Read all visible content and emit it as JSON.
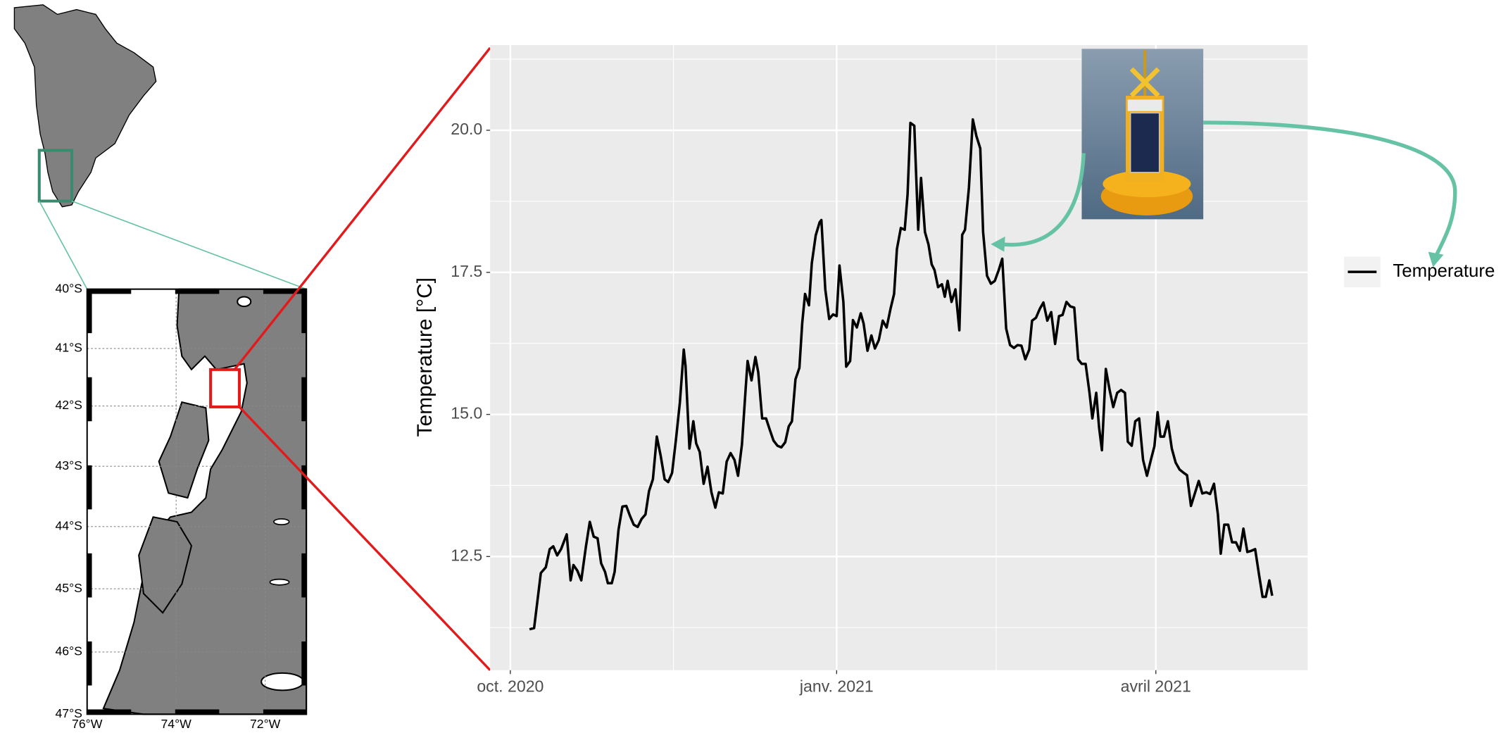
{
  "chart_data": {
    "type": "line",
    "y_label": "Temperature [°C]",
    "x": [
      5.4,
      6.7,
      8.6,
      10.0,
      11.1,
      12.1,
      13.2,
      14.3,
      15.9,
      17.0,
      17.8,
      18.9,
      20.0,
      21.3,
      22.4,
      23.5,
      24.6,
      25.6,
      26.7,
      27.5,
      28.6,
      29.4,
      30.5,
      31.6,
      32.7,
      33.7,
      34.8,
      35.9,
      37.0,
      38.1,
      39.1,
      40.2,
      41.3,
      42.4,
      43.5,
      44.5,
      45.6,
      46.7,
      47.8,
      48.9,
      49.4,
      50.5,
      51.6,
      52.4,
      53.4,
      54.5,
      55.6,
      56.7,
      57.8,
      58.8,
      59.9,
      61.0,
      62.1,
      63.2,
      64.2,
      65.3,
      66.4,
      66.9,
      68.0,
      69.1,
      69.9,
      71.0,
      72.1,
      73.1,
      74.2,
      75.3,
      76.4,
      77.5,
      78.5,
      79.4,
      80.4,
      81.5,
      82.3,
      83.1,
      84.2,
      85.0,
      86.1,
      87.2,
      87.7,
      88.8,
      89.9,
      91.0,
      92.0,
      92.8,
      93.9,
      94.7,
      95.8,
      96.6,
      97.7,
      98.8,
      99.6,
      100.7,
      101.8,
      102.8,
      103.9,
      105.0,
      106.1,
      107.2,
      108.2,
      109.0,
      110.1,
      111.2,
      112.0,
      112.8,
      113.9,
      115.0,
      115.8,
      116.9,
      117.9,
      118.8,
      119.6,
      120.6,
      121.7,
      122.5,
      123.3,
      124.4,
      125.5,
      126.6,
      127.4,
      128.2,
      129.3,
      130.4,
      131.4,
      132.5,
      133.3,
      134.4,
      135.5,
      136.6,
      137.7,
      138.7,
      139.8,
      140.9,
      142.0,
      143.0,
      144.1,
      145.2,
      146.3,
      147.1,
      148.2,
      149.3,
      150.3,
      151.4,
      152.5,
      153.6,
      154.7,
      155.7,
      156.8,
      157.9,
      159.0,
      160.1,
      161.1,
      162.2,
      163.3,
      164.1,
      165.2,
      166.0,
      166.8,
      167.9,
      169.0,
      170.0,
      171.1,
      172.2,
      173.3,
      174.1,
      175.2,
      176.2,
      177.3,
      178.4,
      179.5,
      180.6,
      181.6,
      182.5,
      183.3,
      184.3,
      185.4,
      186.5,
      187.6,
      188.7,
      189.7,
      190.8,
      191.9,
      193.0,
      194.1,
      195.1,
      196.2,
      197.3,
      198.4,
      199.5,
      200.3,
      201.3,
      202.4,
      203.5,
      204.6,
      205.7,
      206.7,
      207.8,
      208.9,
      210.0,
      211.1,
      212.1,
      213.0,
      214.0,
      214.8
    ],
    "series": [
      {
        "name": "Temperature",
        "color": "#000000",
        "values": [
          11.22,
          11.24,
          12.21,
          12.31,
          12.63,
          12.68,
          12.52,
          12.63,
          12.89,
          12.08,
          12.35,
          12.25,
          12.08,
          12.67,
          13.11,
          12.85,
          12.82,
          12.38,
          12.23,
          12.03,
          12.03,
          12.23,
          12.97,
          13.38,
          13.39,
          13.22,
          13.06,
          13.02,
          13.16,
          13.24,
          13.65,
          13.86,
          14.61,
          14.27,
          13.86,
          13.81,
          13.97,
          14.56,
          15.21,
          16.14,
          15.85,
          14.4,
          14.88,
          14.49,
          14.34,
          13.78,
          14.08,
          13.63,
          13.36,
          13.63,
          13.61,
          14.17,
          14.32,
          14.2,
          13.92,
          14.47,
          15.5,
          15.94,
          15.6,
          16.01,
          15.74,
          14.93,
          14.93,
          14.74,
          14.54,
          14.45,
          14.42,
          14.51,
          14.79,
          14.88,
          15.62,
          15.82,
          16.61,
          17.12,
          16.92,
          17.66,
          18.15,
          18.38,
          18.42,
          17.2,
          16.68,
          16.76,
          16.73,
          17.62,
          16.98,
          15.84,
          15.94,
          16.66,
          16.53,
          16.78,
          16.6,
          16.12,
          16.39,
          16.16,
          16.31,
          16.65,
          16.53,
          16.86,
          17.12,
          17.91,
          18.28,
          18.25,
          18.87,
          20.13,
          20.08,
          18.25,
          19.16,
          18.21,
          17.99,
          17.64,
          17.54,
          17.24,
          17.29,
          17.07,
          17.35,
          16.98,
          17.2,
          16.48,
          18.16,
          18.25,
          18.99,
          20.19,
          19.9,
          19.68,
          18.21,
          17.44,
          17.3,
          17.35,
          17.54,
          17.74,
          16.51,
          16.22,
          16.17,
          16.22,
          16.21,
          15.97,
          16.14,
          16.65,
          16.7,
          16.86,
          16.97,
          16.65,
          16.8,
          16.24,
          16.73,
          16.75,
          16.98,
          16.9,
          16.88,
          15.97,
          15.89,
          15.89,
          15.38,
          14.93,
          15.38,
          14.77,
          14.37,
          15.8,
          15.42,
          15.13,
          15.38,
          15.43,
          15.38,
          14.52,
          14.45,
          14.88,
          14.93,
          14.2,
          13.92,
          14.2,
          14.44,
          15.04,
          14.61,
          14.61,
          14.88,
          14.4,
          14.15,
          14.03,
          13.98,
          13.93,
          13.39,
          13.61,
          13.83,
          13.61,
          13.63,
          13.6,
          13.78,
          13.24,
          12.55,
          13.06,
          13.06,
          12.75,
          12.75,
          12.6,
          12.99,
          12.58,
          12.6,
          12.63,
          12.18,
          11.79,
          11.79,
          12.08,
          11.81
        ]
      }
    ],
    "xlim": [
      -5.7,
      224.8
    ],
    "xticks": [
      {
        "value": 0,
        "label": "oct. 2020"
      },
      {
        "value": 92,
        "label": "janv. 2021"
      },
      {
        "value": 182,
        "label": "avril 2021"
      }
    ],
    "ylim": [
      10.5,
      21.5
    ],
    "yticks": [
      12.5,
      {
        "value": 15,
        "label": "15.0"
      },
      17.5,
      {
        "value": 20,
        "label": "20.0"
      }
    ],
    "grid": true,
    "minor_grid": true,
    "legend": "right"
  },
  "inset_map": {
    "latitudes": [
      "40°S",
      "41°S",
      "42°S",
      "43°S",
      "44°S",
      "45°S",
      "46°S",
      "47°S"
    ],
    "longitudes": [
      "76°W",
      "74°W",
      "72°W"
    ]
  }
}
